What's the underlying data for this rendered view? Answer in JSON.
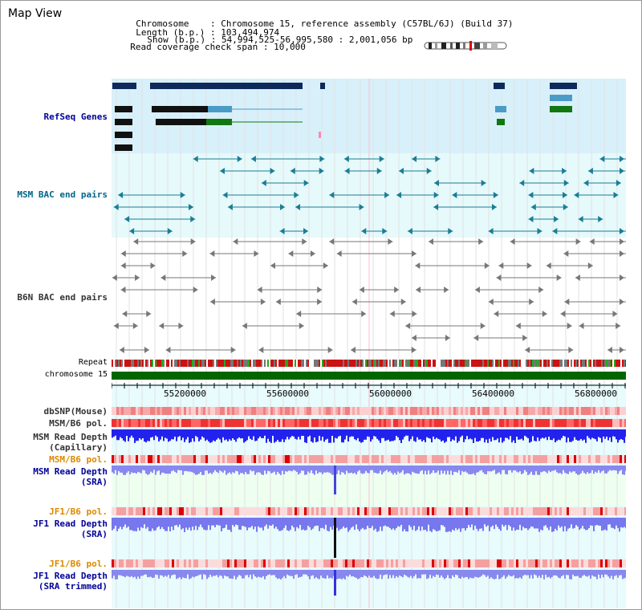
{
  "header": {
    "title": "Map View",
    "chromosome_label": "Chromosome",
    "chromosome_value": "Chromosome 15, reference assembly (C57BL/6J) (Build 37)",
    "length_label": "Length (b.p.)",
    "length_value": "103,494,974",
    "show_label": "Show (b.p.)",
    "show_value": "54,994,525-56,995,580 : 2,001,056 bp",
    "coverage_label": "Read coverage check span",
    "coverage_value": "10,000"
  },
  "tracks": {
    "refseq": "RefSeq Genes",
    "msm_bac": "MSM BAC end pairs",
    "b6n_bac": "B6N BAC end pairs",
    "repeat": "Repeat",
    "chromosome": "chromosome 15",
    "dbsnp": "dbSNP(Mouse)",
    "msm_b6_pol": "MSM/B6 pol.",
    "msm_depth_cap_1": "MSM Read Depth",
    "msm_depth_cap_2": "(Capillary)",
    "msm_b6_pol2": "MSM/B6 pol.",
    "msm_depth_sra_1": "MSM Read Depth",
    "msm_depth_sra_2": "(SRA)",
    "jf1_b6_pol": "JF1/B6 pol.",
    "jf1_depth_sra_1": "JF1 Read Depth",
    "jf1_depth_sra_2": "(SRA)",
    "jf1_b6_pol2": "JF1/B6 pol.",
    "jf1_depth_trim_1": "JF1 Read Depth",
    "jf1_depth_trim_2": "(SRA trimmed)"
  },
  "axis": {
    "ticks": [
      "55200000",
      "55600000",
      "56000000",
      "56400000",
      "56800000"
    ]
  },
  "colors": {
    "label_blue": "#000099",
    "label_teal": "#006688",
    "label_gray": "#333333",
    "label_orange": "#dd8800",
    "refseq_bg": "#d8f0fa",
    "msm_bg": "#e6f9fb",
    "b6n_bg": "#ffffff",
    "chrom_green": "#006600"
  }
}
